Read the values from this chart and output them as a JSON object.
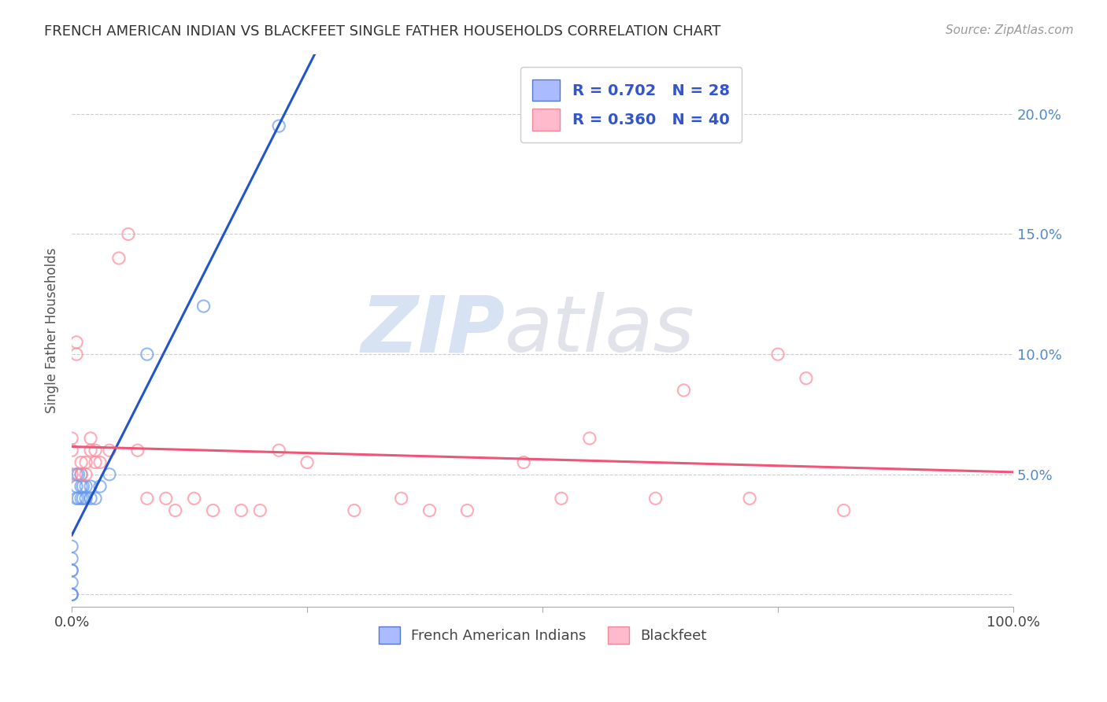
{
  "title": "FRENCH AMERICAN INDIAN VS BLACKFEET SINGLE FATHER HOUSEHOLDS CORRELATION CHART",
  "source": "Source: ZipAtlas.com",
  "ylabel": "Single Father Households",
  "xlim": [
    0,
    1.0
  ],
  "ylim": [
    -0.005,
    0.225
  ],
  "x_ticks": [
    0.0,
    0.25,
    0.5,
    0.75,
    1.0
  ],
  "x_tick_labels": [
    "0.0%",
    "",
    "",
    "",
    "100.0%"
  ],
  "y_ticks": [
    0.0,
    0.05,
    0.1,
    0.15,
    0.2
  ],
  "y_tick_labels_right": [
    "",
    "5.0%",
    "10.0%",
    "15.0%",
    "20.0%"
  ],
  "title_color": "#333333",
  "source_color": "#999999",
  "background_color": "#ffffff",
  "grid_color": "#cccccc",
  "fai_color": "#6699ee",
  "bft_color": "#ff8899",
  "fai_line_color": "#2255cc",
  "bft_line_color": "#ee5577",
  "legend_label_color": "#3355cc",
  "fai_scatter_x": [
    0.0,
    0.0,
    0.0,
    0.0,
    0.0,
    0.0,
    0.0,
    0.0,
    0.005,
    0.005,
    0.005,
    0.007,
    0.007,
    0.01,
    0.01,
    0.01,
    0.012,
    0.012,
    0.015,
    0.015,
    0.02,
    0.02,
    0.025,
    0.03,
    0.04,
    0.08,
    0.14,
    0.22
  ],
  "fai_scatter_y": [
    0.0,
    0.0,
    0.0,
    0.005,
    0.01,
    0.01,
    0.015,
    0.02,
    0.04,
    0.045,
    0.05,
    0.04,
    0.05,
    0.04,
    0.045,
    0.05,
    0.04,
    0.045,
    0.04,
    0.045,
    0.04,
    0.045,
    0.04,
    0.045,
    0.05,
    0.1,
    0.12,
    0.195
  ],
  "bft_scatter_x": [
    0.0,
    0.0,
    0.0,
    0.005,
    0.005,
    0.01,
    0.01,
    0.015,
    0.015,
    0.02,
    0.02,
    0.025,
    0.025,
    0.03,
    0.04,
    0.05,
    0.06,
    0.07,
    0.08,
    0.1,
    0.11,
    0.13,
    0.15,
    0.18,
    0.2,
    0.22,
    0.25,
    0.3,
    0.35,
    0.38,
    0.42,
    0.48,
    0.52,
    0.55,
    0.62,
    0.65,
    0.72,
    0.75,
    0.78,
    0.82
  ],
  "bft_scatter_y": [
    0.05,
    0.06,
    0.065,
    0.1,
    0.105,
    0.05,
    0.055,
    0.05,
    0.055,
    0.06,
    0.065,
    0.055,
    0.06,
    0.055,
    0.06,
    0.14,
    0.15,
    0.06,
    0.04,
    0.04,
    0.035,
    0.04,
    0.035,
    0.035,
    0.035,
    0.06,
    0.055,
    0.035,
    0.04,
    0.035,
    0.035,
    0.055,
    0.04,
    0.065,
    0.04,
    0.085,
    0.04,
    0.1,
    0.09,
    0.035
  ]
}
